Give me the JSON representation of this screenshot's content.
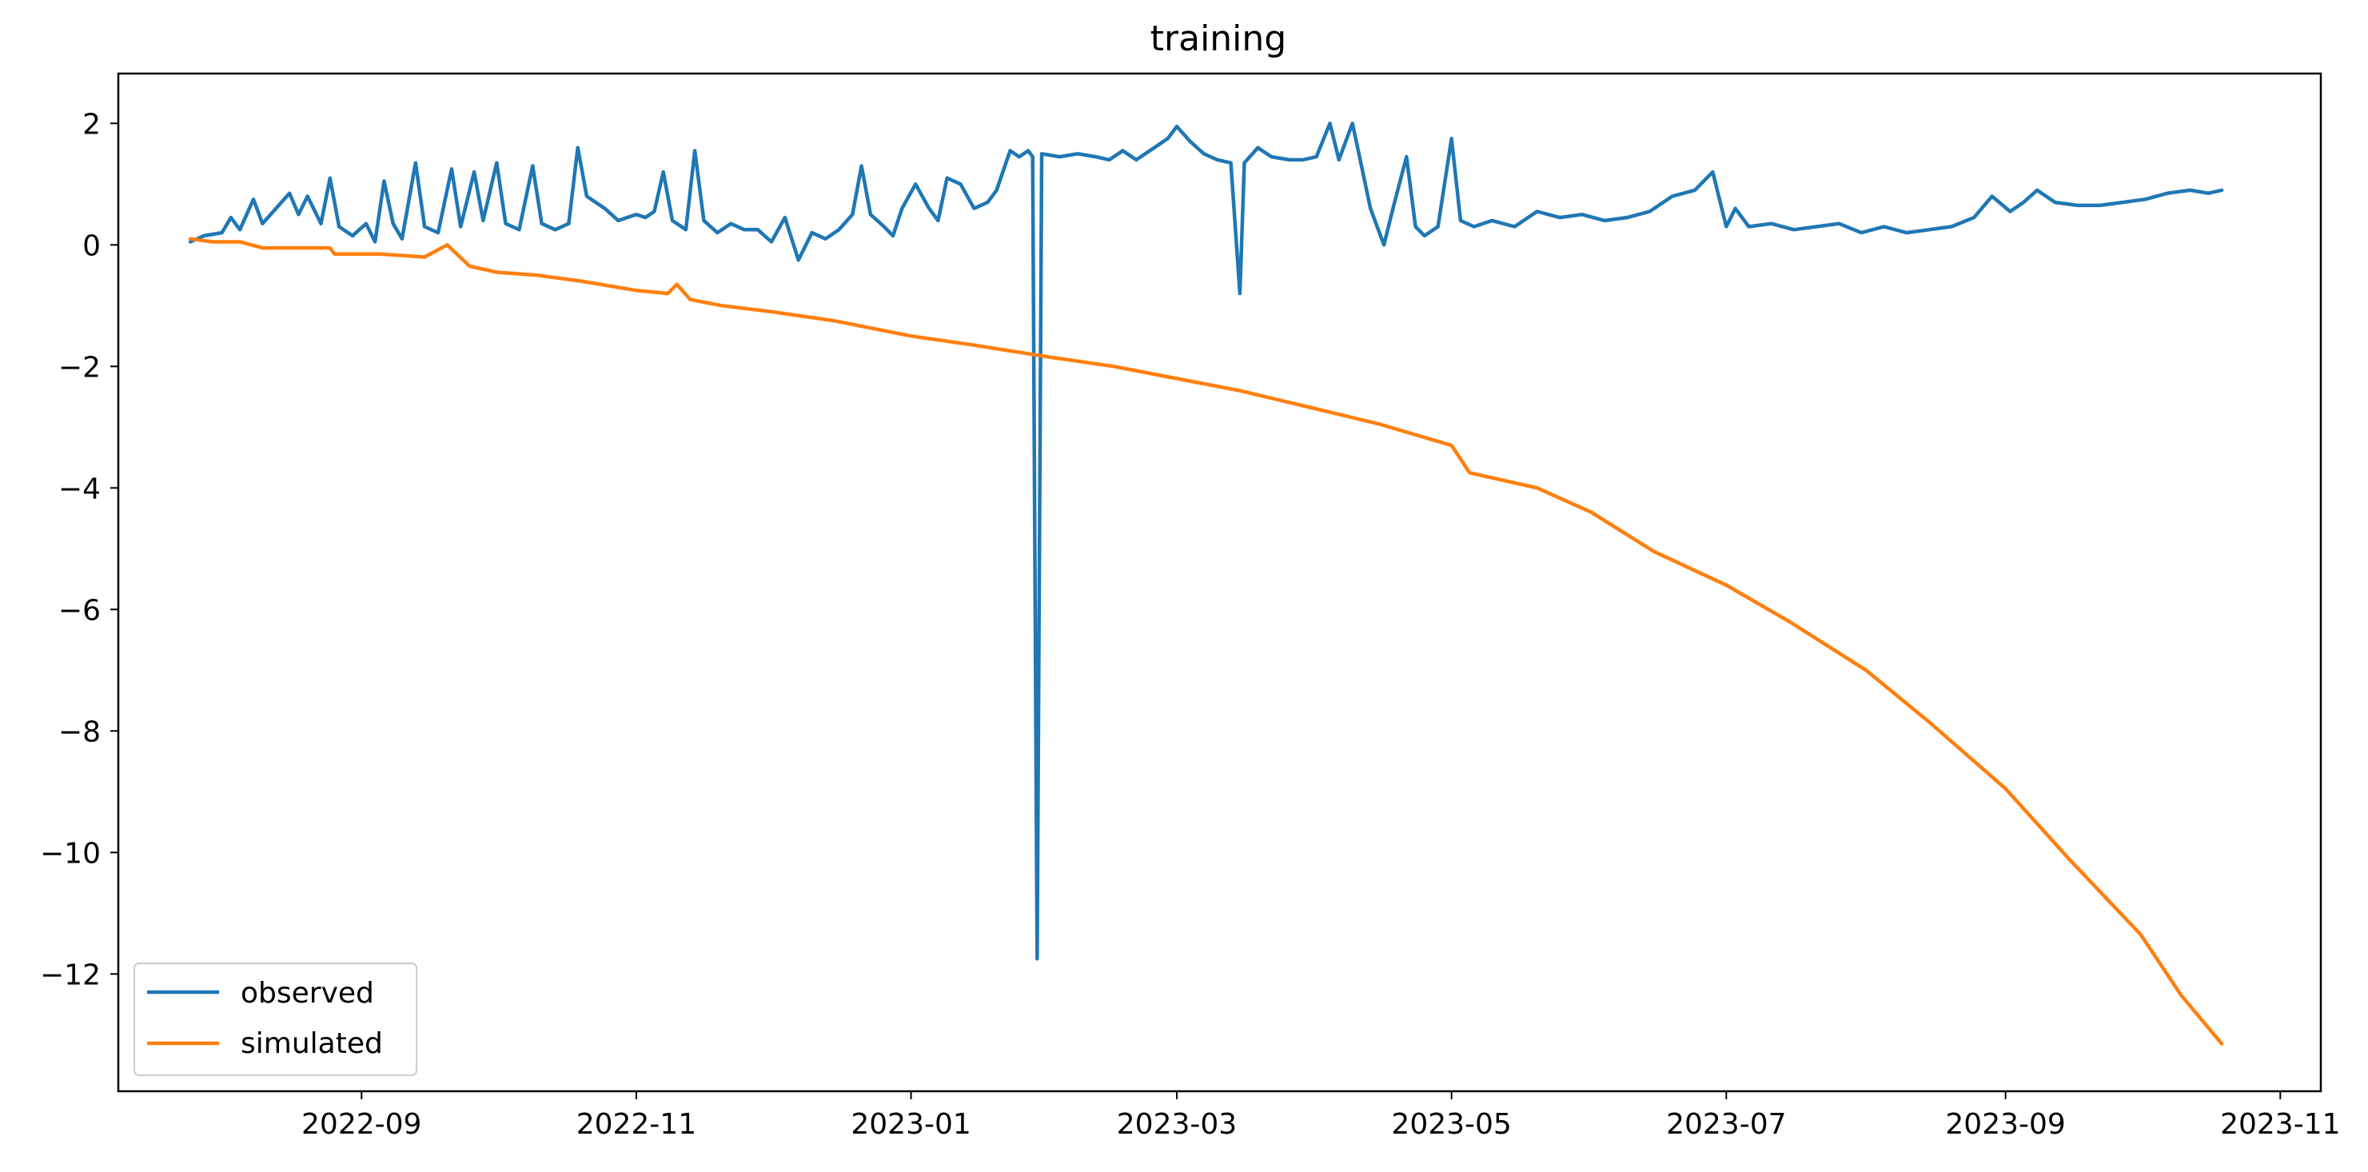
{
  "chart_data": {
    "type": "line",
    "title": "training",
    "xlabel": "",
    "ylabel": "",
    "x_axis_type": "date",
    "xlim": [
      "2022-07-09",
      "2023-11-10"
    ],
    "ylim": [
      -13.93,
      2.82
    ],
    "x_ticks": [
      "2022-09-01",
      "2022-11-01",
      "2023-01-01",
      "2023-03-01",
      "2023-05-01",
      "2023-07-01",
      "2023-09-01",
      "2023-11-01"
    ],
    "x_tick_labels": [
      "2022-09",
      "2022-11",
      "2023-01",
      "2023-03",
      "2023-05",
      "2023-07",
      "2023-09",
      "2023-11"
    ],
    "y_ticks": [
      2,
      0,
      -2,
      -4,
      -6,
      -8,
      -10,
      -12
    ],
    "y_tick_labels": [
      "2",
      "0",
      "−2",
      "−4",
      "−6",
      "−8",
      "−10",
      "−12"
    ],
    "grid": false,
    "legend_position": "lower-left",
    "series": [
      {
        "name": "observed",
        "color": "#1f77b4",
        "points": [
          [
            "2022-07-25",
            0.05
          ],
          [
            "2022-07-28",
            0.15
          ],
          [
            "2022-08-01",
            0.2
          ],
          [
            "2022-08-03",
            0.45
          ],
          [
            "2022-08-05",
            0.25
          ],
          [
            "2022-08-08",
            0.75
          ],
          [
            "2022-08-10",
            0.35
          ],
          [
            "2022-08-13",
            0.6
          ],
          [
            "2022-08-16",
            0.85
          ],
          [
            "2022-08-18",
            0.5
          ],
          [
            "2022-08-20",
            0.8
          ],
          [
            "2022-08-23",
            0.35
          ],
          [
            "2022-08-25",
            1.1
          ],
          [
            "2022-08-27",
            0.3
          ],
          [
            "2022-08-30",
            0.15
          ],
          [
            "2022-09-02",
            0.35
          ],
          [
            "2022-09-04",
            0.05
          ],
          [
            "2022-09-06",
            1.05
          ],
          [
            "2022-09-08",
            0.35
          ],
          [
            "2022-09-10",
            0.1
          ],
          [
            "2022-09-13",
            1.35
          ],
          [
            "2022-09-15",
            0.3
          ],
          [
            "2022-09-18",
            0.2
          ],
          [
            "2022-09-21",
            1.25
          ],
          [
            "2022-09-23",
            0.3
          ],
          [
            "2022-09-26",
            1.2
          ],
          [
            "2022-09-28",
            0.4
          ],
          [
            "2022-10-01",
            1.35
          ],
          [
            "2022-10-03",
            0.35
          ],
          [
            "2022-10-06",
            0.25
          ],
          [
            "2022-10-09",
            1.3
          ],
          [
            "2022-10-11",
            0.35
          ],
          [
            "2022-10-14",
            0.25
          ],
          [
            "2022-10-17",
            0.35
          ],
          [
            "2022-10-19",
            1.6
          ],
          [
            "2022-10-21",
            0.8
          ],
          [
            "2022-10-25",
            0.6
          ],
          [
            "2022-10-28",
            0.4
          ],
          [
            "2022-11-01",
            0.5
          ],
          [
            "2022-11-03",
            0.45
          ],
          [
            "2022-11-05",
            0.55
          ],
          [
            "2022-11-07",
            1.2
          ],
          [
            "2022-11-09",
            0.4
          ],
          [
            "2022-11-12",
            0.25
          ],
          [
            "2022-11-14",
            1.55
          ],
          [
            "2022-11-16",
            0.4
          ],
          [
            "2022-11-19",
            0.2
          ],
          [
            "2022-11-22",
            0.35
          ],
          [
            "2022-11-25",
            0.25
          ],
          [
            "2022-11-28",
            0.25
          ],
          [
            "2022-12-01",
            0.05
          ],
          [
            "2022-12-04",
            0.45
          ],
          [
            "2022-12-07",
            -0.25
          ],
          [
            "2022-12-10",
            0.2
          ],
          [
            "2022-12-13",
            0.1
          ],
          [
            "2022-12-16",
            0.25
          ],
          [
            "2022-12-19",
            0.5
          ],
          [
            "2022-12-21",
            1.3
          ],
          [
            "2022-12-23",
            0.5
          ],
          [
            "2022-12-26",
            0.3
          ],
          [
            "2022-12-28",
            0.15
          ],
          [
            "2022-12-30",
            0.6
          ],
          [
            "2023-01-02",
            1.0
          ],
          [
            "2023-01-05",
            0.6
          ],
          [
            "2023-01-07",
            0.4
          ],
          [
            "2023-01-09",
            1.1
          ],
          [
            "2023-01-12",
            1.0
          ],
          [
            "2023-01-15",
            0.6
          ],
          [
            "2023-01-18",
            0.7
          ],
          [
            "2023-01-20",
            0.9
          ],
          [
            "2023-01-23",
            1.55
          ],
          [
            "2023-01-25",
            1.45
          ],
          [
            "2023-01-27",
            1.55
          ],
          [
            "2023-01-28",
            1.45
          ],
          [
            "2023-01-29",
            -11.75
          ],
          [
            "2023-01-30",
            1.5
          ],
          [
            "2023-02-03",
            1.45
          ],
          [
            "2023-02-07",
            1.5
          ],
          [
            "2023-02-11",
            1.45
          ],
          [
            "2023-02-14",
            1.4
          ],
          [
            "2023-02-17",
            1.55
          ],
          [
            "2023-02-20",
            1.4
          ],
          [
            "2023-02-24",
            1.6
          ],
          [
            "2023-02-27",
            1.75
          ],
          [
            "2023-03-01",
            1.95
          ],
          [
            "2023-03-04",
            1.7
          ],
          [
            "2023-03-07",
            1.5
          ],
          [
            "2023-03-10",
            1.4
          ],
          [
            "2023-03-13",
            1.35
          ],
          [
            "2023-03-15",
            -0.8
          ],
          [
            "2023-03-16",
            1.35
          ],
          [
            "2023-03-19",
            1.6
          ],
          [
            "2023-03-22",
            1.45
          ],
          [
            "2023-03-26",
            1.4
          ],
          [
            "2023-03-29",
            1.4
          ],
          [
            "2023-04-01",
            1.45
          ],
          [
            "2023-04-04",
            2.0
          ],
          [
            "2023-04-06",
            1.4
          ],
          [
            "2023-04-09",
            2.0
          ],
          [
            "2023-04-11",
            1.3
          ],
          [
            "2023-04-13",
            0.6
          ],
          [
            "2023-04-16",
            0.0
          ],
          [
            "2023-04-18",
            0.6
          ],
          [
            "2023-04-21",
            1.45
          ],
          [
            "2023-04-23",
            0.3
          ],
          [
            "2023-04-25",
            0.15
          ],
          [
            "2023-04-28",
            0.3
          ],
          [
            "2023-05-01",
            1.75
          ],
          [
            "2023-05-03",
            0.4
          ],
          [
            "2023-05-06",
            0.3
          ],
          [
            "2023-05-10",
            0.4
          ],
          [
            "2023-05-15",
            0.3
          ],
          [
            "2023-05-20",
            0.55
          ],
          [
            "2023-05-25",
            0.45
          ],
          [
            "2023-05-30",
            0.5
          ],
          [
            "2023-06-04",
            0.4
          ],
          [
            "2023-06-09",
            0.45
          ],
          [
            "2023-06-14",
            0.55
          ],
          [
            "2023-06-19",
            0.8
          ],
          [
            "2023-06-24",
            0.9
          ],
          [
            "2023-06-28",
            1.2
          ],
          [
            "2023-07-01",
            0.3
          ],
          [
            "2023-07-03",
            0.6
          ],
          [
            "2023-07-06",
            0.3
          ],
          [
            "2023-07-11",
            0.35
          ],
          [
            "2023-07-16",
            0.25
          ],
          [
            "2023-07-21",
            0.3
          ],
          [
            "2023-07-26",
            0.35
          ],
          [
            "2023-07-31",
            0.2
          ],
          [
            "2023-08-05",
            0.3
          ],
          [
            "2023-08-10",
            0.2
          ],
          [
            "2023-08-15",
            0.25
          ],
          [
            "2023-08-20",
            0.3
          ],
          [
            "2023-08-25",
            0.45
          ],
          [
            "2023-08-29",
            0.8
          ],
          [
            "2023-09-02",
            0.55
          ],
          [
            "2023-09-05",
            0.7
          ],
          [
            "2023-09-08",
            0.9
          ],
          [
            "2023-09-12",
            0.7
          ],
          [
            "2023-09-17",
            0.65
          ],
          [
            "2023-09-22",
            0.65
          ],
          [
            "2023-09-27",
            0.7
          ],
          [
            "2023-10-02",
            0.75
          ],
          [
            "2023-10-07",
            0.85
          ],
          [
            "2023-10-12",
            0.9
          ],
          [
            "2023-10-16",
            0.85
          ],
          [
            "2023-10-19",
            0.9
          ]
        ]
      },
      {
        "name": "simulated",
        "color": "#ff7f0e",
        "points": [
          [
            "2022-07-25",
            0.1
          ],
          [
            "2022-07-30",
            0.05
          ],
          [
            "2022-08-05",
            0.05
          ],
          [
            "2022-08-10",
            -0.05
          ],
          [
            "2022-08-20",
            -0.05
          ],
          [
            "2022-08-25",
            -0.05
          ],
          [
            "2022-08-26",
            -0.15
          ],
          [
            "2022-09-05",
            -0.15
          ],
          [
            "2022-09-15",
            -0.2
          ],
          [
            "2022-09-20",
            0.0
          ],
          [
            "2022-09-25",
            -0.35
          ],
          [
            "2022-10-01",
            -0.45
          ],
          [
            "2022-10-10",
            -0.5
          ],
          [
            "2022-10-20",
            -0.6
          ],
          [
            "2022-11-01",
            -0.75
          ],
          [
            "2022-11-08",
            -0.8
          ],
          [
            "2022-11-10",
            -0.65
          ],
          [
            "2022-11-13",
            -0.9
          ],
          [
            "2022-11-20",
            -1.0
          ],
          [
            "2022-12-01",
            -1.1
          ],
          [
            "2022-12-15",
            -1.25
          ],
          [
            "2023-01-01",
            -1.5
          ],
          [
            "2023-01-15",
            -1.65
          ],
          [
            "2023-02-01",
            -1.85
          ],
          [
            "2023-02-15",
            -2.0
          ],
          [
            "2023-03-01",
            -2.2
          ],
          [
            "2023-03-15",
            -2.4
          ],
          [
            "2023-04-01",
            -2.7
          ],
          [
            "2023-04-15",
            -2.95
          ],
          [
            "2023-05-01",
            -3.3
          ],
          [
            "2023-05-05",
            -3.75
          ],
          [
            "2023-05-20",
            -4.0
          ],
          [
            "2023-06-01",
            -4.4
          ],
          [
            "2023-06-15",
            -5.05
          ],
          [
            "2023-07-01",
            -5.6
          ],
          [
            "2023-07-15",
            -6.2
          ],
          [
            "2023-08-01",
            -7.0
          ],
          [
            "2023-08-15",
            -7.85
          ],
          [
            "2023-09-01",
            -8.95
          ],
          [
            "2023-09-15",
            -10.1
          ],
          [
            "2023-10-01",
            -11.35
          ],
          [
            "2023-10-10",
            -12.35
          ],
          [
            "2023-10-19",
            -13.15
          ]
        ]
      }
    ]
  }
}
